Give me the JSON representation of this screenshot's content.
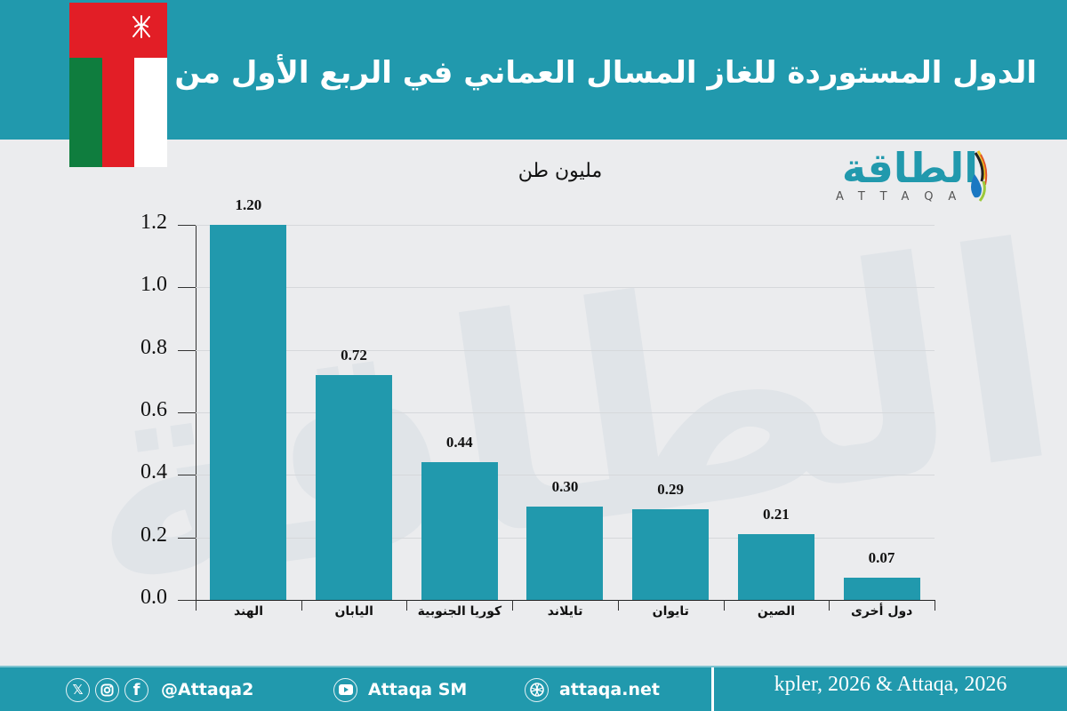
{
  "header": {
    "title": "الدول المستوردة للغاز المسال العماني في الربع الأول من 2026",
    "flag": "oman-flag"
  },
  "logo": {
    "arabic": "الطاقة",
    "latin": "ATTAQA"
  },
  "chart": {
    "unit_label": "مليون طن"
  },
  "chart_data": {
    "type": "bar",
    "title": "الدول المستوردة للغاز المسال العماني في الربع الأول من 2026",
    "ylabel": "مليون طن",
    "xlabel": "",
    "categories": [
      "الهند",
      "اليابان",
      "كوريا الجنوبية",
      "تايلاند",
      "تايوان",
      "الصين",
      "دول أخرى"
    ],
    "values": [
      1.2,
      0.72,
      0.44,
      0.3,
      0.29,
      0.21,
      0.07
    ],
    "value_labels": [
      "1.20",
      "0.72",
      "0.44",
      "0.30",
      "0.29",
      "0.21",
      "0.07"
    ],
    "yticks": [
      "0.0",
      "0.2",
      "0.4",
      "0.6",
      "0.8",
      "1.0",
      "1.2"
    ],
    "ylim": [
      0,
      1.2
    ],
    "grid": true,
    "bar_color": "#2199ad",
    "legend": null
  },
  "footer": {
    "social_handle": "@Attaqa2",
    "youtube": "Attaqa SM",
    "website": "attaqa.net",
    "source": "kpler, 2026 & Attaqa, 2026",
    "icons": [
      "x-icon",
      "instagram-icon",
      "facebook-icon",
      "youtube-icon",
      "globe-icon"
    ]
  },
  "colors": {
    "accent": "#2199ad",
    "background": "#ebecee",
    "flag_red": "#e21e26",
    "flag_green": "#0f7d3e",
    "flag_white": "#ffffff"
  }
}
